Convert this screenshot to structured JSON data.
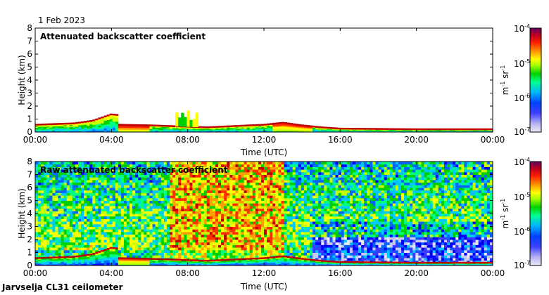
{
  "header": {
    "date": "1 Feb 2023"
  },
  "footer": {
    "instrument": "Jarvselja CL31 ceilometer"
  },
  "colors": {
    "colormap": [
      "#e8e8f4",
      "#c8c8f0",
      "#3b3bff",
      "#0000ff",
      "#0066ff",
      "#00c8ff",
      "#00ff80",
      "#00d000",
      "#c8ff00",
      "#ffff00",
      "#ffa000",
      "#ff3000",
      "#c00000",
      "#700040",
      "#500050"
    ],
    "frame": "#000000"
  },
  "chart_data": [
    {
      "type": "heatmap",
      "title": "Attenuated backscatter coefficient",
      "xlabel": "Time (UTC)",
      "ylabel": "Height (km)",
      "xlim": [
        0,
        24
      ],
      "ylim": [
        0,
        8
      ],
      "x_ticks": [
        "00:00",
        "04:00",
        "08:00",
        "12:00",
        "16:00",
        "20:00",
        "00:00"
      ],
      "y_ticks": [
        "0",
        "1",
        "2",
        "3",
        "4",
        "5",
        "6",
        "7",
        "8"
      ],
      "colorbar": {
        "unit_base": "m",
        "unit_exp": "-1",
        "unit_base2": "sr",
        "unit_exp2": "-1",
        "labels": [
          {
            "base": "10",
            "exp": "-4"
          },
          {
            "base": "10",
            "exp": "-5"
          },
          {
            "base": "10",
            "exp": "-6"
          },
          {
            "base": "10",
            "exp": "-7"
          }
        ],
        "log_min": -7,
        "log_max": -4
      },
      "boundary_layer_top_km": [
        [
          0,
          0.55
        ],
        [
          2,
          0.65
        ],
        [
          3,
          0.85
        ],
        [
          4,
          1.35
        ],
        [
          4.3,
          1.3
        ],
        [
          4.4,
          0.55
        ],
        [
          6,
          0.5
        ],
        [
          8,
          0.4
        ],
        [
          9,
          0.35
        ],
        [
          12,
          0.55
        ],
        [
          13,
          0.7
        ],
        [
          14,
          0.5
        ],
        [
          15,
          0.35
        ],
        [
          16,
          0.25
        ],
        [
          20,
          0.2
        ],
        [
          24,
          0.2
        ]
      ],
      "features": [
        {
          "kind": "convective_cells",
          "time_range": [
            7.4,
            8.6
          ],
          "top_km": 1.7
        },
        {
          "kind": "residual_aerosol_layer",
          "time_range": [
            18,
            24
          ],
          "top_km": 0.5
        }
      ]
    },
    {
      "type": "heatmap",
      "title": "Raw attenuated backscatter coefficient",
      "xlabel": "Time (UTC)",
      "ylabel": "Height (km)",
      "xlim": [
        0,
        24
      ],
      "ylim": [
        0,
        8
      ],
      "x_ticks": [
        "00:00",
        "04:00",
        "08:00",
        "12:00",
        "16:00",
        "20:00",
        "00:00"
      ],
      "y_ticks": [
        "0",
        "1",
        "2",
        "3",
        "4",
        "5",
        "6",
        "7",
        "8"
      ],
      "colorbar": {
        "unit_base": "m",
        "unit_exp": "-1",
        "unit_base2": "sr",
        "unit_exp2": "-1",
        "labels": [
          {
            "base": "10",
            "exp": "-4"
          },
          {
            "base": "10",
            "exp": "-5"
          },
          {
            "base": "10",
            "exp": "-6"
          },
          {
            "base": "10",
            "exp": "-7"
          }
        ],
        "log_min": -7,
        "log_max": -4
      },
      "noise_maximum_window": [
        7,
        13
      ],
      "clear_low_region": {
        "time_range": [
          14.5,
          24
        ],
        "height_range_km": [
          0.4,
          2
        ]
      }
    }
  ]
}
